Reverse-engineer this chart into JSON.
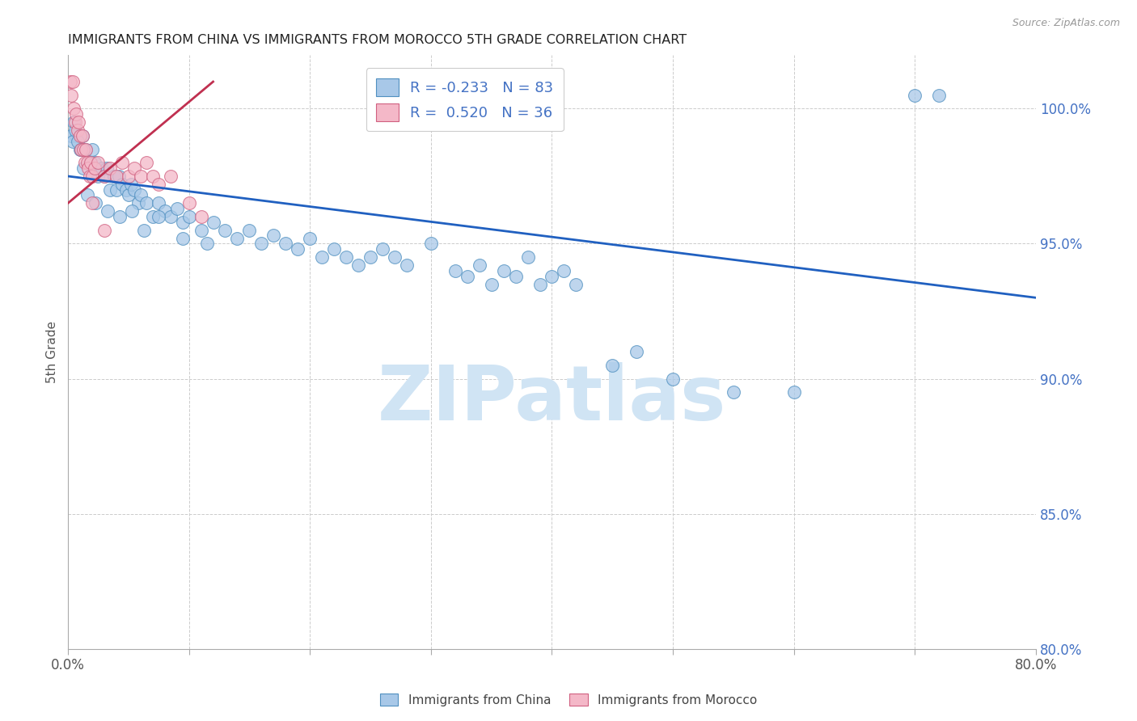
{
  "title": "IMMIGRANTS FROM CHINA VS IMMIGRANTS FROM MOROCCO 5TH GRADE CORRELATION CHART",
  "source": "Source: ZipAtlas.com",
  "ylabel": "5th Grade",
  "ylabel_color": "#555555",
  "xlim": [
    0.0,
    80.0
  ],
  "ylim": [
    80.0,
    102.0
  ],
  "yticks": [
    80.0,
    85.0,
    90.0,
    95.0,
    100.0
  ],
  "xticks": [
    0.0,
    10.0,
    20.0,
    30.0,
    40.0,
    50.0,
    60.0,
    70.0,
    80.0
  ],
  "blue_R": -0.233,
  "blue_N": 83,
  "pink_R": 0.52,
  "pink_N": 36,
  "blue_color": "#a8c8e8",
  "pink_color": "#f4b8c8",
  "blue_edge_color": "#5090c0",
  "pink_edge_color": "#d06080",
  "blue_line_color": "#2060c0",
  "pink_line_color": "#c03050",
  "watermark": "ZIPatlas",
  "watermark_color": "#d0e4f4",
  "legend_label_blue": "Immigrants from China",
  "legend_label_pink": "Immigrants from Morocco",
  "blue_trend_x": [
    0.0,
    80.0
  ],
  "blue_trend_y": [
    97.5,
    93.0
  ],
  "pink_trend_x": [
    0.0,
    12.0
  ],
  "pink_trend_y": [
    96.5,
    101.0
  ],
  "blue_x": [
    0.5,
    0.7,
    1.0,
    1.2,
    1.5,
    1.8,
    2.0,
    2.2,
    2.5,
    2.8,
    3.0,
    3.2,
    3.5,
    3.8,
    4.0,
    4.2,
    4.5,
    4.8,
    5.0,
    5.2,
    5.5,
    5.8,
    6.0,
    6.5,
    7.0,
    7.5,
    8.0,
    8.5,
    9.0,
    9.5,
    10.0,
    11.0,
    12.0,
    13.0,
    14.0,
    15.0,
    16.0,
    17.0,
    18.0,
    19.0,
    20.0,
    21.0,
    22.0,
    23.0,
    24.0,
    25.0,
    26.0,
    27.0,
    28.0,
    30.0,
    32.0,
    33.0,
    34.0,
    35.0,
    36.0,
    37.0,
    38.0,
    39.0,
    40.0,
    41.0,
    42.0,
    45.0,
    47.0,
    50.0,
    55.0,
    60.0,
    70.0,
    72.0,
    0.3,
    0.4,
    0.6,
    0.8,
    1.1,
    1.3,
    1.6,
    2.3,
    3.3,
    4.3,
    5.3,
    6.3,
    7.5,
    9.5,
    11.5
  ],
  "blue_y": [
    99.5,
    99.0,
    98.5,
    99.0,
    98.5,
    98.0,
    98.5,
    98.0,
    97.5,
    97.8,
    97.5,
    97.8,
    97.0,
    97.5,
    97.0,
    97.5,
    97.2,
    97.0,
    96.8,
    97.2,
    97.0,
    96.5,
    96.8,
    96.5,
    96.0,
    96.5,
    96.2,
    96.0,
    96.3,
    95.8,
    96.0,
    95.5,
    95.8,
    95.5,
    95.2,
    95.5,
    95.0,
    95.3,
    95.0,
    94.8,
    95.2,
    94.5,
    94.8,
    94.5,
    94.2,
    94.5,
    94.8,
    94.5,
    94.2,
    95.0,
    94.0,
    93.8,
    94.2,
    93.5,
    94.0,
    93.8,
    94.5,
    93.5,
    93.8,
    94.0,
    93.5,
    90.5,
    91.0,
    90.0,
    89.5,
    89.5,
    100.5,
    100.5,
    99.0,
    98.8,
    99.2,
    98.8,
    98.5,
    97.8,
    96.8,
    96.5,
    96.2,
    96.0,
    96.2,
    95.5,
    96.0,
    95.2,
    95.0
  ],
  "pink_x": [
    0.2,
    0.3,
    0.4,
    0.5,
    0.6,
    0.7,
    0.8,
    0.9,
    1.0,
    1.1,
    1.2,
    1.3,
    1.4,
    1.5,
    1.6,
    1.7,
    1.8,
    1.9,
    2.0,
    2.2,
    2.5,
    3.0,
    3.5,
    4.0,
    4.5,
    5.0,
    5.5,
    6.0,
    6.5,
    7.0,
    7.5,
    8.5,
    10.0,
    11.0,
    2.0,
    3.0
  ],
  "pink_y": [
    101.0,
    100.5,
    101.0,
    100.0,
    99.5,
    99.8,
    99.2,
    99.5,
    99.0,
    98.5,
    99.0,
    98.5,
    98.0,
    98.5,
    98.0,
    97.8,
    97.5,
    98.0,
    97.5,
    97.8,
    98.0,
    97.5,
    97.8,
    97.5,
    98.0,
    97.5,
    97.8,
    97.5,
    98.0,
    97.5,
    97.2,
    97.5,
    96.5,
    96.0,
    96.5,
    95.5
  ]
}
